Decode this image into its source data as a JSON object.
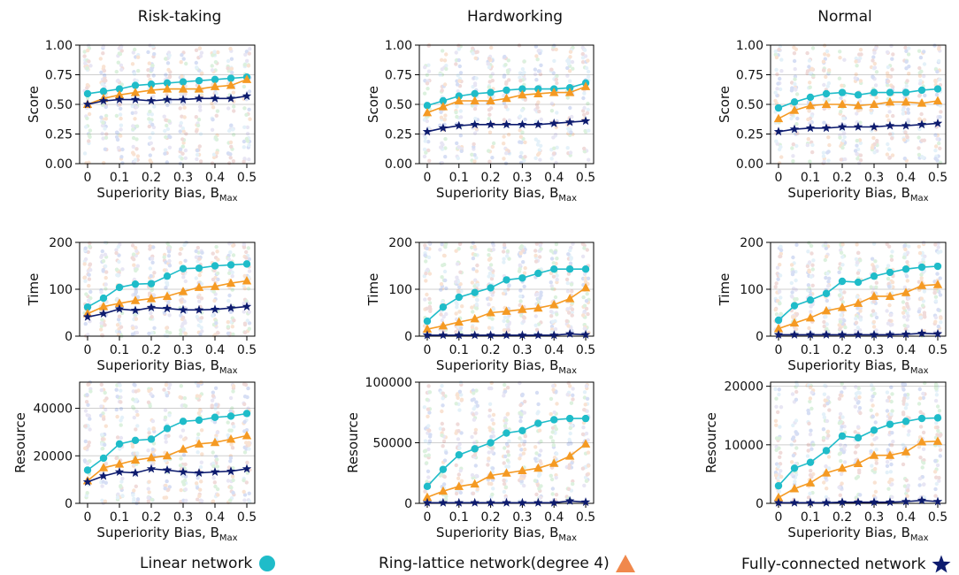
{
  "chart_data": [
    {
      "type": "line",
      "column_title": "Risk-taking",
      "xlabel": "Superiority Bias, B",
      "xlabel_sub": "Max",
      "ylabel": "Score",
      "x": [
        0,
        0.05,
        0.1,
        0.15,
        0.2,
        0.25,
        0.3,
        0.35,
        0.4,
        0.45,
        0.5
      ],
      "xticks": [
        "0",
        "0.1",
        "0.2",
        "0.3",
        "0.4",
        "0.5"
      ],
      "ylim": [
        0,
        1
      ],
      "yticks": [
        "0.00",
        "0.25",
        "0.50",
        "0.75",
        "1.00"
      ],
      "grid": true,
      "series": [
        {
          "key": "linear",
          "values": [
            0.59,
            0.61,
            0.63,
            0.66,
            0.67,
            0.68,
            0.69,
            0.7,
            0.71,
            0.72,
            0.73
          ]
        },
        {
          "key": "ring",
          "values": [
            0.5,
            0.55,
            0.58,
            0.6,
            0.62,
            0.63,
            0.63,
            0.63,
            0.65,
            0.66,
            0.71
          ]
        },
        {
          "key": "full",
          "values": [
            0.5,
            0.53,
            0.54,
            0.54,
            0.53,
            0.54,
            0.54,
            0.55,
            0.55,
            0.55,
            0.57
          ]
        }
      ]
    },
    {
      "type": "line",
      "column_title": "Hardworking",
      "xlabel": "Superiority Bias, B",
      "xlabel_sub": "Max",
      "ylabel": "Score",
      "x": [
        0,
        0.05,
        0.1,
        0.15,
        0.2,
        0.25,
        0.3,
        0.35,
        0.4,
        0.45,
        0.5
      ],
      "xticks": [
        "0",
        "0.1",
        "0.2",
        "0.3",
        "0.4",
        "0.5"
      ],
      "ylim": [
        0,
        1
      ],
      "yticks": [
        "0.00",
        "0.25",
        "0.50",
        "0.75",
        "1.00"
      ],
      "grid": true,
      "series": [
        {
          "key": "linear",
          "values": [
            0.49,
            0.53,
            0.57,
            0.59,
            0.6,
            0.62,
            0.63,
            0.63,
            0.63,
            0.64,
            0.68
          ]
        },
        {
          "key": "ring",
          "values": [
            0.43,
            0.48,
            0.53,
            0.53,
            0.53,
            0.55,
            0.58,
            0.59,
            0.6,
            0.6,
            0.65
          ]
        },
        {
          "key": "full",
          "values": [
            0.27,
            0.3,
            0.32,
            0.33,
            0.33,
            0.33,
            0.33,
            0.33,
            0.34,
            0.35,
            0.36
          ]
        }
      ]
    },
    {
      "type": "line",
      "column_title": "Normal",
      "xlabel": "Superiority Bias, B",
      "xlabel_sub": "Max",
      "ylabel": "Score",
      "x": [
        0,
        0.05,
        0.1,
        0.15,
        0.2,
        0.25,
        0.3,
        0.35,
        0.4,
        0.45,
        0.5
      ],
      "xticks": [
        "0",
        "0.1",
        "0.2",
        "0.3",
        "0.4",
        "0.5"
      ],
      "ylim": [
        0,
        1
      ],
      "yticks": [
        "0.00",
        "0.25",
        "0.50",
        "0.75",
        "1.00"
      ],
      "grid": true,
      "series": [
        {
          "key": "linear",
          "values": [
            0.47,
            0.52,
            0.56,
            0.59,
            0.6,
            0.58,
            0.6,
            0.6,
            0.6,
            0.62,
            0.63
          ]
        },
        {
          "key": "ring",
          "values": [
            0.38,
            0.45,
            0.49,
            0.5,
            0.5,
            0.49,
            0.5,
            0.52,
            0.52,
            0.51,
            0.53
          ]
        },
        {
          "key": "full",
          "values": [
            0.27,
            0.29,
            0.3,
            0.3,
            0.31,
            0.31,
            0.31,
            0.32,
            0.32,
            0.33,
            0.34
          ]
        }
      ]
    },
    {
      "type": "line",
      "xlabel": "Superiority Bias, B",
      "xlabel_sub": "Max",
      "ylabel": "Time",
      "x": [
        0,
        0.05,
        0.1,
        0.15,
        0.2,
        0.25,
        0.3,
        0.35,
        0.4,
        0.45,
        0.5
      ],
      "xticks": [
        "0",
        "0.1",
        "0.2",
        "0.3",
        "0.4",
        "0.5"
      ],
      "ylim": [
        0,
        200
      ],
      "yticks": [
        "0",
        "100",
        "200"
      ],
      "grid": true,
      "series": [
        {
          "key": "linear",
          "values": [
            62,
            81,
            104,
            111,
            112,
            128,
            144,
            145,
            150,
            152,
            154
          ]
        },
        {
          "key": "ring",
          "values": [
            48,
            63,
            70,
            76,
            80,
            85,
            95,
            104,
            106,
            113,
            118
          ]
        },
        {
          "key": "full",
          "values": [
            41,
            48,
            58,
            55,
            61,
            59,
            56,
            56,
            57,
            60,
            63
          ]
        }
      ]
    },
    {
      "type": "line",
      "xlabel": "Superiority Bias, B",
      "xlabel_sub": "Max",
      "ylabel": "Time",
      "x": [
        0,
        0.05,
        0.1,
        0.15,
        0.2,
        0.25,
        0.3,
        0.35,
        0.4,
        0.45,
        0.5
      ],
      "xticks": [
        "0",
        "0.1",
        "0.2",
        "0.3",
        "0.4",
        "0.5"
      ],
      "ylim": [
        0,
        200
      ],
      "yticks": [
        "0",
        "100",
        "200"
      ],
      "grid": true,
      "series": [
        {
          "key": "linear",
          "values": [
            32,
            62,
            83,
            93,
            103,
            120,
            124,
            134,
            143,
            143,
            143
          ]
        },
        {
          "key": "ring",
          "values": [
            15,
            22,
            30,
            37,
            50,
            53,
            57,
            60,
            67,
            80,
            103
          ]
        },
        {
          "key": "full",
          "values": [
            2,
            2,
            2,
            2,
            2,
            2,
            2,
            2,
            2,
            5,
            3
          ]
        }
      ]
    },
    {
      "type": "line",
      "xlabel": "Superiority Bias, B",
      "xlabel_sub": "Max",
      "ylabel": "Time",
      "x": [
        0,
        0.05,
        0.1,
        0.15,
        0.2,
        0.25,
        0.3,
        0.35,
        0.4,
        0.45,
        0.5
      ],
      "xticks": [
        "0",
        "0.1",
        "0.2",
        "0.3",
        "0.4",
        "0.5"
      ],
      "ylim": [
        0,
        200
      ],
      "yticks": [
        "0",
        "100",
        "200"
      ],
      "grid": true,
      "series": [
        {
          "key": "linear",
          "values": [
            34,
            65,
            77,
            91,
            117,
            115,
            128,
            136,
            143,
            147,
            149
          ]
        },
        {
          "key": "ring",
          "values": [
            16,
            28,
            39,
            54,
            61,
            70,
            85,
            85,
            93,
            108,
            110
          ]
        },
        {
          "key": "full",
          "values": [
            3,
            3,
            3,
            3,
            3,
            3,
            3,
            3,
            4,
            6,
            5
          ]
        }
      ]
    },
    {
      "type": "line",
      "xlabel": "Superiority Bias, B",
      "xlabel_sub": "Max",
      "ylabel": "Resource",
      "x": [
        0,
        0.05,
        0.1,
        0.15,
        0.2,
        0.25,
        0.3,
        0.35,
        0.4,
        0.45,
        0.5
      ],
      "xticks": [
        "0",
        "0.1",
        "0.2",
        "0.3",
        "0.4",
        "0.5"
      ],
      "ylim": [
        0,
        51000
      ],
      "yticks": [
        "0",
        "20000",
        "40000"
      ],
      "ytick_values": [
        0,
        20000,
        40000
      ],
      "grid": true,
      "series": [
        {
          "key": "linear",
          "values": [
            14000,
            19000,
            25000,
            26500,
            27000,
            31500,
            34500,
            35000,
            36200,
            36700,
            37800
          ]
        },
        {
          "key": "ring",
          "values": [
            9500,
            15000,
            16500,
            18200,
            19200,
            20000,
            22800,
            25000,
            25600,
            27000,
            28500
          ]
        },
        {
          "key": "full",
          "values": [
            9000,
            11500,
            13200,
            12800,
            14500,
            14000,
            13200,
            12800,
            13200,
            13500,
            14500
          ]
        }
      ]
    },
    {
      "type": "line",
      "xlabel": "Superiority Bias, B",
      "xlabel_sub": "Max",
      "ylabel": "Resource",
      "x": [
        0,
        0.05,
        0.1,
        0.15,
        0.2,
        0.25,
        0.3,
        0.35,
        0.4,
        0.45,
        0.5
      ],
      "xticks": [
        "0",
        "0.1",
        "0.2",
        "0.3",
        "0.4",
        "0.5"
      ],
      "ylim": [
        0,
        100000
      ],
      "yticks": [
        "0",
        "50000",
        "100000"
      ],
      "ytick_values": [
        0,
        50000,
        100000
      ],
      "grid": true,
      "series": [
        {
          "key": "linear",
          "values": [
            14000,
            28000,
            40000,
            45000,
            50000,
            58000,
            60000,
            66000,
            69000,
            70000,
            70000
          ]
        },
        {
          "key": "ring",
          "values": [
            5000,
            10000,
            14000,
            16000,
            23000,
            25000,
            27000,
            29000,
            33000,
            39000,
            49000
          ]
        },
        {
          "key": "full",
          "values": [
            500,
            500,
            500,
            500,
            500,
            500,
            500,
            500,
            500,
            2000,
            1000
          ]
        }
      ]
    },
    {
      "type": "line",
      "xlabel": "Superiority Bias, B",
      "xlabel_sub": "Max",
      "ylabel": "Resource",
      "x": [
        0,
        0.05,
        0.1,
        0.15,
        0.2,
        0.25,
        0.3,
        0.35,
        0.4,
        0.45,
        0.5
      ],
      "xticks": [
        "0",
        "0.1",
        "0.2",
        "0.3",
        "0.4",
        "0.5"
      ],
      "ylim": [
        0,
        20700
      ],
      "yticks": [
        "0",
        "10000",
        "20000"
      ],
      "ytick_values": [
        0,
        10000,
        20000
      ],
      "grid": true,
      "series": [
        {
          "key": "linear",
          "values": [
            3000,
            6000,
            7000,
            9000,
            11500,
            11200,
            12500,
            13500,
            14000,
            14500,
            14600
          ]
        },
        {
          "key": "ring",
          "values": [
            1000,
            2500,
            3500,
            5200,
            6000,
            6800,
            8200,
            8200,
            8800,
            10500,
            10600
          ]
        },
        {
          "key": "full",
          "values": [
            100,
            100,
            100,
            100,
            200,
            200,
            200,
            200,
            300,
            500,
            300
          ]
        }
      ]
    }
  ],
  "legend": [
    {
      "key": "linear",
      "label": "Linear network",
      "marker": "circle",
      "color": "#1fbcc9"
    },
    {
      "key": "ring",
      "label": "Ring-lattice network(degree 4)",
      "marker": "triangle",
      "color": "#f59a23",
      "legend_color": "#f0884c"
    },
    {
      "key": "full",
      "label": "Fully-connected network",
      "marker": "star",
      "color": "#0d1b6e"
    }
  ],
  "scatter_colors": [
    "#4a6fd1",
    "#e8833a",
    "#66c26e",
    "#c0605a",
    "#9b8fd1",
    "#8ac3e6"
  ]
}
